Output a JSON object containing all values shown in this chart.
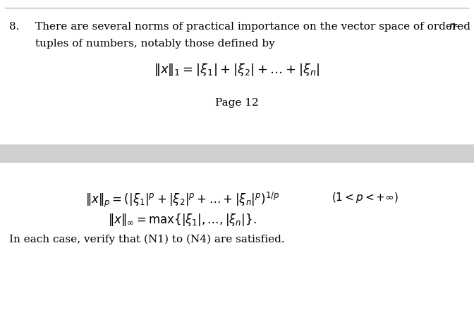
{
  "background_color": "#ffffff",
  "mid_bar_color": "#d0d0d0",
  "fig_width": 6.72,
  "fig_height": 4.4,
  "dpi": 100,
  "item_number": "8.",
  "intro_text_line1": "There are several norms of practical importance on the vector space of ordered ",
  "intro_italic": "$n$-",
  "intro_text_line2": "tuples of numbers, notably those defined by",
  "formula1": "$\\|x\\|_1 = |\\xi_1| + |\\xi_2| + \\ldots + |\\xi_n|$",
  "page_label": "Page 12",
  "formula2": "$\\|x\\|_p = \\left(|\\xi_1|^p + |\\xi_2|^p + \\ldots + |\\xi_n|^p\\right)^{1/p}$",
  "condition": "$(1 < p < +\\infty)$",
  "formula3": "$\\|x\\|_\\infty = \\max\\{|\\xi_1|, \\ldots, |\\xi_n|\\}.$",
  "footer_text": "In each case, verify that (N1) to (N4) are satisfied.",
  "font_size_main": 11,
  "font_size_formula": 12,
  "font_size_page": 11
}
